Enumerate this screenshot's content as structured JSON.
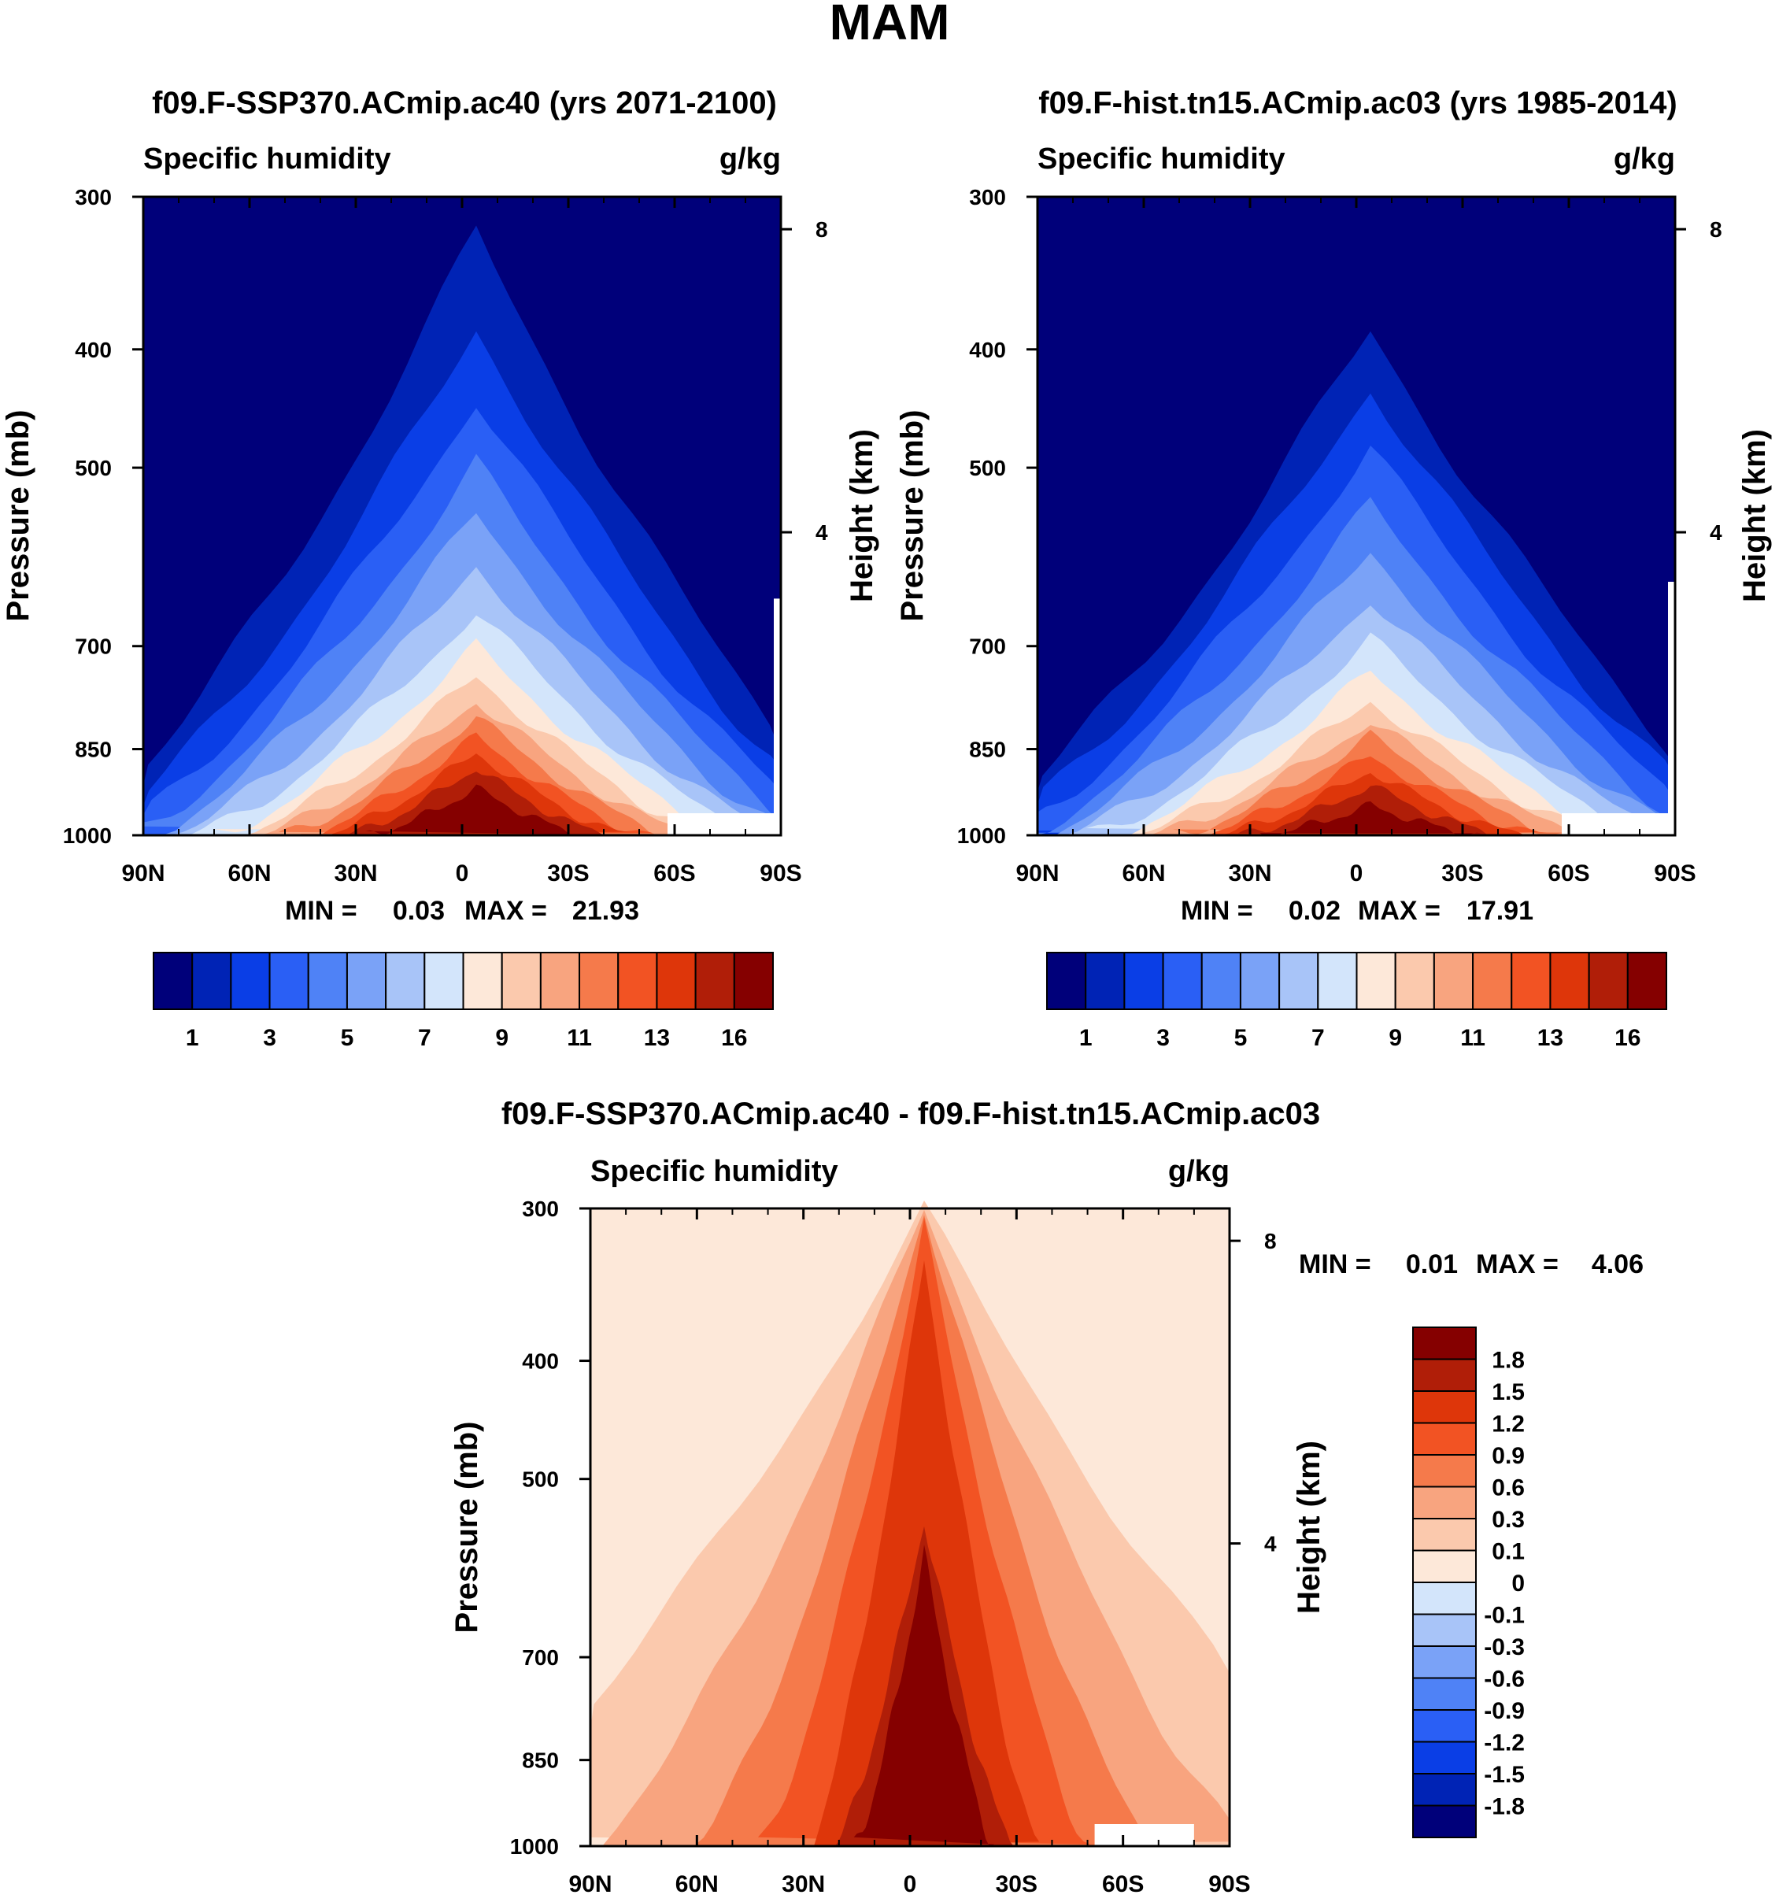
{
  "title": "MAM",
  "colors": {
    "abs_palette": [
      "#00007a",
      "#0023b5",
      "#0a3ee6",
      "#2a5ff5",
      "#4f82f6",
      "#7aa2f7",
      "#a8c4f8",
      "#d3e5fb",
      "#fde8d9",
      "#fbc9ad",
      "#f8a47f",
      "#f57a4b",
      "#f25323",
      "#de360a",
      "#b01e08",
      "#850000"
    ],
    "diff_palette": [
      "#850000",
      "#b01e08",
      "#de360a",
      "#f25323",
      "#f57a4b",
      "#f8a47f",
      "#fbc9ad",
      "#fde8d9",
      "#d3e5fb",
      "#a8c4f8",
      "#7aa2f7",
      "#4f82f6",
      "#2a5ff5",
      "#0a3ee6",
      "#0023b5",
      "#00007a"
    ]
  },
  "chart_data": [
    {
      "type": "contour",
      "title": "f09.F-SSP370.ACmip.ac40 (yrs 2071-2100)",
      "left_label": "Specific humidity",
      "right_label": "g/kg",
      "ylabel": "Pressure (mb)",
      "y2label": "Height (km)",
      "xticks": [
        "90N",
        "60N",
        "30N",
        "0",
        "30S",
        "60S",
        "90S"
      ],
      "yticks": [
        "300",
        "400",
        "500",
        "700",
        "850",
        "1000"
      ],
      "y2ticks": [
        "8",
        "4"
      ],
      "minmax": {
        "min_label": "MIN =",
        "min": "0.03",
        "max_label": "MAX =",
        "max": "21.93"
      },
      "colorbar_labels": [
        "1",
        "3",
        "5",
        "7",
        "9",
        "11",
        "13",
        "16"
      ],
      "levels_top_pressure_by_band": [
        320,
        385,
        440,
        495,
        545,
        600,
        655,
        700,
        740,
        775,
        800,
        830,
        855,
        880,
        915
      ],
      "peak_value": 21.93
    },
    {
      "type": "contour",
      "title": "f09.F-hist.tn15.ACmip.ac03 (yrs 1985-2014)",
      "left_label": "Specific humidity",
      "right_label": "g/kg",
      "ylabel": "Pressure (mb)",
      "y2label": "Height (km)",
      "xticks": [
        "90N",
        "60N",
        "30N",
        "0",
        "30S",
        "60S",
        "90S"
      ],
      "yticks": [
        "300",
        "400",
        "500",
        "700",
        "850",
        "1000"
      ],
      "y2ticks": [
        "8",
        "4"
      ],
      "minmax": {
        "min_label": "MIN =",
        "min": "0.02",
        "max_label": "MAX =",
        "max": "17.91"
      },
      "colorbar_labels": [
        "1",
        "3",
        "5",
        "7",
        "9",
        "11",
        "13",
        "16"
      ],
      "levels_top_pressure_by_band": [
        385,
        430,
        480,
        535,
        585,
        640,
        690,
        735,
        775,
        805,
        830,
        860,
        885,
        910,
        945
      ],
      "peak_value": 17.91
    },
    {
      "type": "contour",
      "title": "f09.F-SSP370.ACmip.ac40 - f09.F-hist.tn15.ACmip.ac03",
      "left_label": "Specific humidity",
      "right_label": "g/kg",
      "ylabel": "Pressure (mb)",
      "y2label": "Height (km)",
      "xticks": [
        "90N",
        "60N",
        "30N",
        "0",
        "30S",
        "60S",
        "90S"
      ],
      "yticks": [
        "300",
        "400",
        "500",
        "700",
        "850",
        "1000"
      ],
      "y2ticks": [
        "8",
        "4"
      ],
      "minmax": {
        "min_label": "MIN =",
        "min": "0.01",
        "max_label": "MAX =",
        "max": "4.06"
      },
      "colorbar_labels": [
        "1.8",
        "1.5",
        "1.2",
        "0.9",
        "0.6",
        "0.3",
        "0.1",
        "0",
        "-0.1",
        "-0.3",
        "-0.6",
        "-0.9",
        "-1.2",
        "-1.5",
        "-1.8"
      ],
      "peak_value": 4.06
    }
  ]
}
